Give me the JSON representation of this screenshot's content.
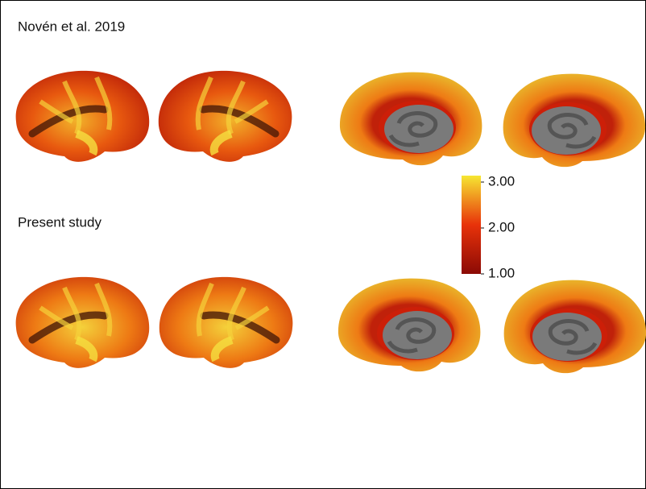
{
  "panels": [
    {
      "label": "Novén et al. 2019"
    },
    {
      "label": "Present study"
    }
  ],
  "colorbar": {
    "lim": [
      1,
      3
    ],
    "ticks": [
      {
        "value": 3,
        "label": "3.00"
      },
      {
        "value": 2,
        "label": "2.00"
      },
      {
        "value": 1,
        "label": "1.00"
      }
    ],
    "colors": [
      "#8b0a05",
      "#e8320a",
      "#f6e632"
    ]
  }
}
